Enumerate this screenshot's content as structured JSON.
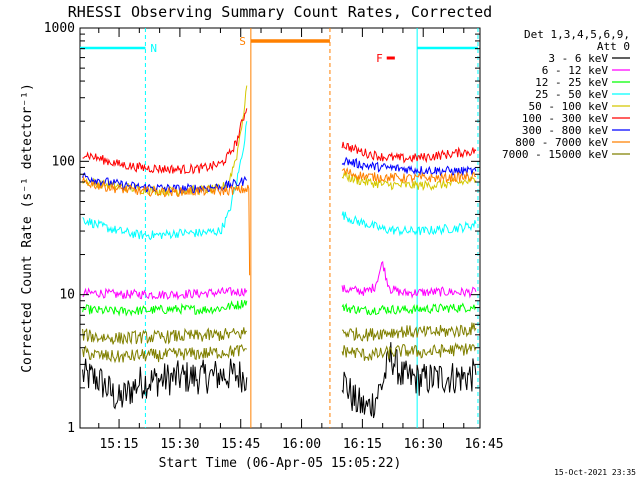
{
  "chart_data": {
    "type": "line",
    "title": "RHESSI Observing Summary Count Rates, Corrected",
    "ylabel": "Corrected Count Rate (s⁻¹ detector⁻¹)",
    "xlabel": "Start Time (06-Apr-05 15:05:22)",
    "y_scale": "log",
    "ylim": [
      1,
      1000
    ],
    "xlim_minutes": [
      5.37,
      104.0
    ],
    "x_ticks": [
      {
        "label": "15:15",
        "minutes": 15
      },
      {
        "label": "15:30",
        "minutes": 30
      },
      {
        "label": "15:45",
        "minutes": 45
      },
      {
        "label": "16:00",
        "minutes": 60
      },
      {
        "label": "16:15",
        "minutes": 75
      },
      {
        "label": "16:30",
        "minutes": 90
      },
      {
        "label": "16:45",
        "minutes": 105
      }
    ],
    "y_ticks": [
      {
        "label": "1",
        "value": 1
      },
      {
        "label": "10",
        "value": 10
      },
      {
        "label": "100",
        "value": 100
      },
      {
        "label": "1000",
        "value": 1000
      }
    ],
    "legend": {
      "placement": "right",
      "header": [
        "Det 1,3,4,5,6,9,",
        "Att 0"
      ],
      "entries": [
        {
          "label": "3 - 6 keV",
          "color": "#000000"
        },
        {
          "label": "6 - 12 keV",
          "color": "#ff00ff"
        },
        {
          "label": "12 - 25 keV",
          "color": "#00ff00"
        },
        {
          "label": "25 - 50 keV",
          "color": "#00ffff"
        },
        {
          "label": "50 - 100 keV",
          "color": "#d4c800"
        },
        {
          "label": "100 - 300 keV",
          "color": "#ff0000"
        },
        {
          "label": "300 - 800 keV",
          "color": "#0000ff"
        },
        {
          "label": "800 - 7000 keV",
          "color": "#ff8000"
        },
        {
          "label": "7000 - 15000 keV",
          "color": "#808000"
        }
      ]
    },
    "flags": [
      {
        "label": "N",
        "color": "#00ffff",
        "segments": [
          [
            5.37,
            21.5
          ],
          [
            88.5,
            103.5
          ]
        ]
      },
      {
        "label": "S",
        "color": "#ff8000",
        "segments": [
          [
            47.5,
            67.0
          ]
        ]
      },
      {
        "label": "F",
        "color": "#ff0000",
        "segments": [
          [
            81.0,
            83.0
          ]
        ]
      }
    ],
    "markers": [
      {
        "minutes": 21.5,
        "color": "#00ffff",
        "style": "dashed"
      },
      {
        "minutes": 47.5,
        "color": "#ff8000",
        "style": "solid"
      },
      {
        "minutes": 67.0,
        "color": "#ff8000",
        "style": "dashed"
      },
      {
        "minutes": 88.5,
        "color": "#00ffff",
        "style": "solid"
      },
      {
        "minutes": 103.5,
        "color": "#00ffff",
        "style": "dashed"
      }
    ],
    "series": [
      {
        "color": "#000000",
        "segments": [
          {
            "x": [
              6,
              10,
              15,
              20,
              25,
              30,
              35,
              40,
              45,
              46.5
            ],
            "y": [
              2.5,
              2.3,
              1.6,
              2.2,
              2.3,
              2.4,
              2.4,
              2.5,
              2.5,
              2.4
            ]
          },
          {
            "x": [
              70,
              73,
              76,
              78,
              80,
              82,
              85,
              90,
              95,
              100,
              103
            ],
            "y": [
              2.4,
              1.6,
              1.4,
              1.6,
              2.2,
              3.5,
              2.4,
              2.3,
              2.4,
              2.4,
              2.5
            ]
          }
        ]
      },
      {
        "color": "#ff00ff",
        "segments": [
          {
            "x": [
              6,
              10,
              15,
              20,
              25,
              30,
              35,
              40,
              45,
              46.5
            ],
            "y": [
              10.2,
              10.3,
              10.0,
              10.1,
              10.0,
              10.1,
              10.2,
              10.4,
              10.5,
              10.8
            ]
          },
          {
            "x": [
              70,
              73,
              76,
              78,
              79,
              80,
              81,
              82,
              85,
              90,
              95,
              100,
              103
            ],
            "y": [
              11.0,
              10.8,
              10.5,
              11.5,
              14.0,
              17.5,
              13.0,
              11.0,
              10.3,
              10.4,
              10.5,
              10.4,
              10.5
            ]
          }
        ]
      },
      {
        "color": "#00ff00",
        "segments": [
          {
            "x": [
              6,
              10,
              15,
              20,
              25,
              30,
              35,
              40,
              45,
              46.5
            ],
            "y": [
              7.8,
              7.6,
              7.5,
              7.6,
              7.7,
              7.8,
              7.7,
              7.9,
              8.5,
              9.0
            ]
          },
          {
            "x": [
              70,
              73,
              76,
              80,
              85,
              90,
              95,
              100,
              103
            ],
            "y": [
              8.0,
              7.8,
              7.6,
              7.8,
              7.7,
              7.8,
              7.9,
              8.0,
              8.1
            ]
          }
        ]
      },
      {
        "color": "#00ffff",
        "segments": [
          {
            "x": [
              6,
              10,
              15,
              20,
              25,
              30,
              35,
              40,
              42,
              44,
              45,
              46,
              46.5
            ],
            "y": [
              37,
              33,
              30,
              28,
              28,
              29,
              29,
              30,
              40,
              70,
              100,
              150,
              200
            ]
          },
          {
            "x": [
              70,
              73,
              76,
              80,
              85,
              90,
              95,
              100,
              103
            ],
            "y": [
              40,
              36,
              34,
              31,
              30,
              30,
              31,
              32,
              34
            ]
          }
        ]
      },
      {
        "color": "#d4c800",
        "segments": [
          {
            "x": [
              6,
              10,
              15,
              20,
              25,
              30,
              35,
              40,
              42,
              44,
              45,
              46,
              46.5
            ],
            "y": [
              72,
              68,
              65,
              62,
              60,
              60,
              61,
              62,
              70,
              110,
              170,
              260,
              370
            ]
          },
          {
            "x": [
              70,
              73,
              76,
              80,
              85,
              90,
              95,
              100,
              103
            ],
            "y": [
              80,
              73,
              70,
              67,
              66,
              66,
              67,
              70,
              72
            ]
          }
        ]
      },
      {
        "color": "#ff0000",
        "segments": [
          {
            "x": [
              6,
              10,
              15,
              20,
              25,
              30,
              35,
              40,
              42,
              44,
              45,
              46,
              46.5
            ],
            "y": [
              115,
              105,
              95,
              90,
              88,
              87,
              88,
              95,
              110,
              140,
              180,
              230,
              250
            ]
          },
          {
            "x": [
              70,
              73,
              76,
              80,
              85,
              90,
              95,
              100,
              103
            ],
            "y": [
              135,
              123,
              115,
              108,
              105,
              107,
              112,
              117,
              120
            ]
          }
        ]
      },
      {
        "color": "#0000ff",
        "segments": [
          {
            "x": [
              6,
              10,
              15,
              20,
              25,
              30,
              35,
              40,
              42,
              44,
              45,
              46.5
            ],
            "y": [
              78,
              72,
              67,
              64,
              63,
              62,
              63,
              64,
              66,
              68,
              70,
              72
            ]
          },
          {
            "x": [
              70,
              73,
              76,
              80,
              85,
              90,
              95,
              100,
              103
            ],
            "y": [
              102,
              97,
              93,
              90,
              88,
              86,
              85,
              84,
              84
            ]
          }
        ]
      },
      {
        "color": "#ff8000",
        "segments": [
          {
            "x": [
              6,
              10,
              15,
              20,
              25,
              30,
              35,
              40,
              45,
              46.5,
              47,
              47.2
            ],
            "y": [
              70,
              66,
              62,
              60,
              59,
              59,
              60,
              60,
              61,
              62,
              62,
              14
            ]
          },
          {
            "x": [
              70,
              73,
              76,
              80,
              85,
              90,
              95,
              100,
              103
            ],
            "y": [
              85,
              80,
              77,
              76,
              75,
              75,
              75,
              76,
              77
            ]
          }
        ]
      },
      {
        "color": "#808000",
        "segments": [
          {
            "x": [
              6,
              10,
              15,
              20,
              25,
              30,
              35,
              40,
              45,
              46.5
            ],
            "y": [
              3.7,
              3.5,
              3.4,
              3.5,
              3.5,
              3.6,
              3.6,
              3.7,
              3.8,
              3.9
            ]
          },
          {
            "x": [
              70,
              73,
              76,
              80,
              85,
              90,
              95,
              100,
              103
            ],
            "y": [
              3.8,
              3.7,
              3.5,
              3.6,
              3.8,
              3.7,
              3.8,
              3.9,
              4.0
            ]
          }
        ]
      },
      {
        "color": "#808000",
        "segments": [
          {
            "x": [
              6,
              10,
              15,
              20,
              25,
              30,
              35,
              40,
              45,
              46.5
            ],
            "y": [
              5.0,
              4.8,
              4.7,
              4.8,
              4.8,
              4.9,
              4.9,
              5.0,
              5.1,
              5.3
            ]
          },
          {
            "x": [
              70,
              73,
              76,
              80,
              85,
              90,
              95,
              100,
              103
            ],
            "y": [
              5.3,
              5.1,
              5.0,
              5.2,
              5.3,
              5.2,
              5.3,
              5.4,
              5.6
            ]
          }
        ]
      }
    ]
  },
  "footer": {
    "timestamp": "15-Oct-2021 23:35"
  }
}
